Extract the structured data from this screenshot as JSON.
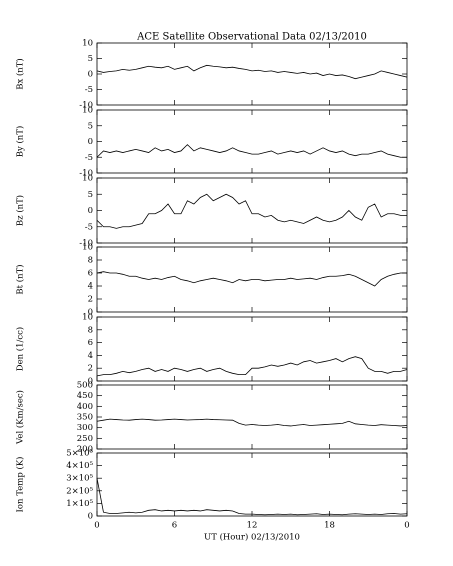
{
  "chart_data": [
    {
      "type": "line",
      "title": "ACE Satellite Observational Data   02/13/2010",
      "ylabel": "Bx (nT)",
      "color": "#000000",
      "x": [
        0,
        0.5,
        1,
        1.5,
        2,
        2.5,
        3,
        3.5,
        4,
        4.5,
        5,
        5.5,
        6,
        6.5,
        7,
        7.5,
        8,
        8.5,
        9,
        9.5,
        10,
        10.5,
        11,
        11.5,
        12,
        12.5,
        13,
        13.5,
        14,
        14.5,
        15,
        15.5,
        16,
        16.5,
        17,
        17.5,
        18,
        18.5,
        19,
        19.5,
        20,
        20.5,
        21,
        21.5,
        22,
        22.5,
        23,
        23.5,
        24
      ],
      "values": [
        1,
        0.5,
        0.8,
        1,
        1.5,
        1.2,
        1.5,
        2,
        2.5,
        2.2,
        2,
        2.5,
        1.5,
        2,
        2.5,
        1,
        2,
        2.8,
        2.5,
        2.3,
        2,
        2.2,
        1.8,
        1.5,
        1,
        1.2,
        0.8,
        1,
        0.5,
        0.8,
        0.5,
        0.2,
        0.5,
        0,
        0.3,
        -0.5,
        0,
        -0.5,
        -0.3,
        -0.8,
        -1.5,
        -1,
        -0.5,
        0,
        1,
        0.5,
        0,
        -0.5,
        -1
      ],
      "xlim": [
        0,
        24
      ],
      "ylim": [
        -10,
        10
      ],
      "yticks": [
        -10,
        -5,
        0,
        5,
        10
      ]
    },
    {
      "type": "line",
      "ylabel": "By (nT)",
      "color": "#000000",
      "x": [
        0,
        0.5,
        1,
        1.5,
        2,
        2.5,
        3,
        3.5,
        4,
        4.5,
        5,
        5.5,
        6,
        6.5,
        7,
        7.5,
        8,
        8.5,
        9,
        9.5,
        10,
        10.5,
        11,
        11.5,
        12,
        12.5,
        13,
        13.5,
        14,
        14.5,
        15,
        15.5,
        16,
        16.5,
        17,
        17.5,
        18,
        18.5,
        19,
        19.5,
        20,
        20.5,
        21,
        21.5,
        22,
        22.5,
        23,
        23.5,
        24
      ],
      "values": [
        -5,
        -3,
        -3.5,
        -3,
        -3.5,
        -3,
        -2.5,
        -3,
        -3.5,
        -2,
        -3,
        -2.5,
        -3.5,
        -3,
        -1,
        -3,
        -2,
        -2.5,
        -3,
        -3.5,
        -3,
        -2,
        -3,
        -3.5,
        -4,
        -4,
        -3.5,
        -3,
        -4,
        -3.5,
        -3,
        -3.5,
        -3,
        -4,
        -3,
        -2,
        -3,
        -3.5,
        -3,
        -4,
        -4.5,
        -4,
        -4,
        -3.5,
        -3,
        -4,
        -4.5,
        -5,
        -5
      ],
      "xlim": [
        0,
        24
      ],
      "ylim": [
        -10,
        10
      ],
      "yticks": [
        -10,
        -5,
        0,
        5,
        10
      ]
    },
    {
      "type": "line",
      "ylabel": "Bz (nT)",
      "color": "#000000",
      "x": [
        0,
        0.5,
        1,
        1.5,
        2,
        2.5,
        3,
        3.5,
        4,
        4.5,
        5,
        5.5,
        6,
        6.5,
        7,
        7.5,
        8,
        8.5,
        9,
        9.5,
        10,
        10.5,
        11,
        11.5,
        12,
        12.5,
        13,
        13.5,
        14,
        14.5,
        15,
        15.5,
        16,
        16.5,
        17,
        17.5,
        18,
        18.5,
        19,
        19.5,
        20,
        20.5,
        21,
        21.5,
        22,
        22.5,
        23,
        23.5,
        24
      ],
      "values": [
        -3,
        -5,
        -5,
        -5.5,
        -5,
        -5,
        -4.5,
        -4,
        -1,
        -1,
        0,
        2,
        -1,
        -1,
        3,
        2,
        4,
        5,
        3,
        4,
        5,
        4,
        2,
        3,
        -1,
        -1,
        -2,
        -1.5,
        -3,
        -3.5,
        -3,
        -3.5,
        -4,
        -3,
        -2,
        -3,
        -3.5,
        -3,
        -2,
        0,
        -2,
        -3,
        1,
        2,
        -2,
        -1,
        -1,
        -1.5,
        -1.5
      ],
      "xlim": [
        0,
        24
      ],
      "ylim": [
        -10,
        10
      ],
      "yticks": [
        -10,
        -5,
        0,
        5,
        10
      ]
    },
    {
      "type": "line",
      "ylabel": "Bt (nT)",
      "color": "#000000",
      "x": [
        0,
        0.5,
        1,
        1.5,
        2,
        2.5,
        3,
        3.5,
        4,
        4.5,
        5,
        5.5,
        6,
        6.5,
        7,
        7.5,
        8,
        8.5,
        9,
        9.5,
        10,
        10.5,
        11,
        11.5,
        12,
        12.5,
        13,
        13.5,
        14,
        14.5,
        15,
        15.5,
        16,
        16.5,
        17,
        17.5,
        18,
        18.5,
        19,
        19.5,
        20,
        20.5,
        21,
        21.5,
        22,
        22.5,
        23,
        23.5,
        24
      ],
      "values": [
        6,
        6.2,
        6,
        6,
        5.8,
        5.5,
        5.5,
        5.2,
        5,
        5.2,
        5,
        5.3,
        5.5,
        5,
        4.8,
        4.5,
        4.8,
        5,
        5.2,
        5,
        4.8,
        4.5,
        5,
        4.8,
        5,
        5,
        4.8,
        4.9,
        5,
        5,
        5.2,
        5,
        5.1,
        5.2,
        5,
        5.3,
        5.5,
        5.5,
        5.6,
        5.8,
        5.5,
        5,
        4.5,
        4,
        5,
        5.5,
        5.8,
        6,
        6
      ],
      "xlim": [
        0,
        24
      ],
      "ylim": [
        0,
        10
      ],
      "yticks": [
        0,
        2,
        4,
        6,
        8,
        10
      ]
    },
    {
      "type": "line",
      "ylabel": "Den (1/cc)",
      "color": "#000000",
      "x": [
        0,
        0.5,
        1,
        1.5,
        2,
        2.5,
        3,
        3.5,
        4,
        4.5,
        5,
        5.5,
        6,
        6.5,
        7,
        7.5,
        8,
        8.5,
        9,
        9.5,
        10,
        10.5,
        11,
        11.5,
        12,
        12.5,
        13,
        13.5,
        14,
        14.5,
        15,
        15.5,
        16,
        16.5,
        17,
        17.5,
        18,
        18.5,
        19,
        19.5,
        20,
        20.5,
        21,
        21.5,
        22,
        22.5,
        23,
        23.5,
        24
      ],
      "values": [
        0.8,
        1,
        1,
        1.2,
        1.5,
        1.3,
        1.5,
        1.8,
        2,
        1.5,
        1.8,
        1.5,
        2,
        1.8,
        1.5,
        1.8,
        2,
        1.5,
        1.8,
        2,
        1.5,
        1.2,
        1,
        1,
        2,
        2,
        2.2,
        2.5,
        2.3,
        2.5,
        2.8,
        2.5,
        3,
        3.2,
        2.8,
        3,
        3.2,
        3.5,
        3,
        3.5,
        3.8,
        3.5,
        2,
        1.5,
        1.5,
        1.2,
        1.5,
        1.5,
        1.8
      ],
      "xlim": [
        0,
        24
      ],
      "ylim": [
        0,
        10
      ],
      "yticks": [
        0,
        2,
        4,
        6,
        8,
        10
      ]
    },
    {
      "type": "line",
      "ylabel": "Vel (Km/sec)",
      "color": "#000000",
      "x": [
        0,
        0.5,
        1,
        1.5,
        2,
        2.5,
        3,
        3.5,
        4,
        4.5,
        5,
        5.5,
        6,
        6.5,
        7,
        7.5,
        8,
        8.5,
        9,
        9.5,
        10,
        10.5,
        11,
        11.5,
        12,
        12.5,
        13,
        13.5,
        14,
        14.5,
        15,
        15.5,
        16,
        16.5,
        17,
        17.5,
        18,
        18.5,
        19,
        19.5,
        20,
        20.5,
        21,
        21.5,
        22,
        22.5,
        23,
        23.5,
        24
      ],
      "values": [
        330,
        335,
        340,
        338,
        336,
        335,
        338,
        340,
        338,
        335,
        336,
        338,
        340,
        338,
        336,
        337,
        338,
        340,
        338,
        337,
        336,
        335,
        320,
        312,
        315,
        312,
        310,
        312,
        315,
        310,
        308,
        312,
        315,
        310,
        312,
        314,
        316,
        318,
        320,
        330,
        318,
        315,
        312,
        310,
        314,
        312,
        310,
        308,
        310
      ],
      "xlim": [
        0,
        24
      ],
      "ylim": [
        200,
        500
      ],
      "yticks": [
        200,
        250,
        300,
        350,
        400,
        450,
        500
      ]
    },
    {
      "type": "line",
      "ylabel": "Ion Temp (K)",
      "xlabel": "UT (Hour)   02/13/2010",
      "color": "#000000",
      "x": [
        0,
        0.5,
        1,
        1.5,
        2,
        2.5,
        3,
        3.5,
        4,
        4.5,
        5,
        5.5,
        6,
        6.5,
        7,
        7.5,
        8,
        8.5,
        9,
        9.5,
        10,
        10.5,
        11,
        11.5,
        12,
        12.5,
        13,
        13.5,
        14,
        14.5,
        15,
        15.5,
        16,
        16.5,
        17,
        17.5,
        18,
        18.5,
        19,
        19.5,
        20,
        20.5,
        21,
        21.5,
        22,
        22.5,
        23,
        23.5,
        24
      ],
      "values": [
        300000,
        30000,
        20000,
        20000,
        25000,
        30000,
        25000,
        30000,
        45000,
        50000,
        40000,
        45000,
        40000,
        45000,
        40000,
        45000,
        40000,
        50000,
        45000,
        40000,
        45000,
        40000,
        20000,
        15000,
        15000,
        12000,
        10000,
        12000,
        15000,
        12000,
        15000,
        10000,
        12000,
        15000,
        18000,
        12000,
        15000,
        12000,
        10000,
        15000,
        18000,
        15000,
        12000,
        15000,
        12000,
        18000,
        20000,
        15000,
        18000
      ],
      "xlim": [
        0,
        24
      ],
      "ylim": [
        0,
        500000
      ],
      "yticks": [
        0,
        {
          "value": 100000,
          "label": "1×10⁵"
        },
        {
          "value": 200000,
          "label": "2×10⁵"
        },
        {
          "value": 300000,
          "label": "3×10⁵"
        },
        {
          "value": 400000,
          "label": "4×10⁵"
        },
        {
          "value": 500000,
          "label": "5×10⁵"
        }
      ],
      "xticks": [
        0,
        6,
        12,
        18,
        {
          "value": 24,
          "label": "0"
        }
      ]
    }
  ]
}
